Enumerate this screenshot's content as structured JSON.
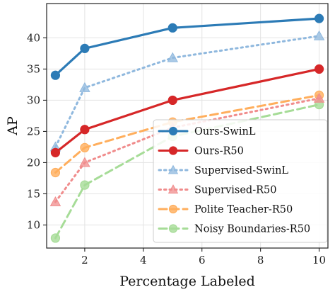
{
  "chart_data": {
    "type": "line",
    "xlabel": "Percentage Labeled",
    "ylabel": "AP",
    "xlim": [
      0.7,
      10.3
    ],
    "ylim": [
      6.3,
      45.5
    ],
    "xticks": [
      2,
      4,
      6,
      8,
      10
    ],
    "yticks": [
      10,
      15,
      20,
      25,
      30,
      35,
      40
    ],
    "grid": true,
    "legend_position": "lower-right",
    "series": [
      {
        "name": "Ours-SwinL",
        "x": [
          1,
          2,
          5,
          10
        ],
        "values": [
          34.0,
          38.3,
          41.6,
          43.1
        ],
        "color": "#2c7bb6",
        "style": "solid",
        "marker": "circle",
        "marker_alpha": 1.0
      },
      {
        "name": "Ours-R50",
        "x": [
          1,
          2,
          5,
          10
        ],
        "values": [
          21.6,
          25.3,
          30.0,
          35.0
        ],
        "color": "#d62728",
        "style": "solid",
        "marker": "circle",
        "marker_alpha": 1.0
      },
      {
        "name": "Supervised-SwinL",
        "x": [
          1,
          2,
          5,
          10
        ],
        "values": [
          22.5,
          32.0,
          36.8,
          40.3
        ],
        "color": "#8fb8de",
        "style": "dotted",
        "marker": "triangle",
        "marker_alpha": 0.75
      },
      {
        "name": "Supervised-R50",
        "x": [
          1,
          2,
          5,
          10
        ],
        "values": [
          13.7,
          20.0,
          25.6,
          30.3
        ],
        "color": "#f08c8c",
        "style": "dotted",
        "marker": "triangle",
        "marker_alpha": 0.75
      },
      {
        "name": "Polite Teacher-R50",
        "x": [
          1,
          2,
          5,
          10
        ],
        "values": [
          18.4,
          22.4,
          26.5,
          30.8
        ],
        "color": "#ffae5c",
        "style": "dashed",
        "marker": "circle",
        "marker_alpha": 0.8
      },
      {
        "name": "Noisy Boundaries-R50",
        "x": [
          1,
          2,
          5,
          10
        ],
        "values": [
          7.9,
          16.4,
          24.2,
          29.3
        ],
        "color": "#a6dc97",
        "style": "dashed",
        "marker": "circle",
        "marker_alpha": 0.8
      }
    ]
  }
}
